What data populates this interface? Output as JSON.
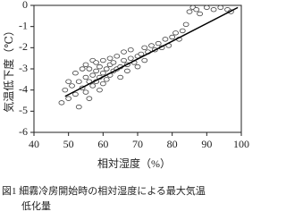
{
  "chart_data": {
    "type": "scatter",
    "xlabel": "相対湿度（%）",
    "ylabel": "気温低下度（℃）",
    "caption": [
      "図1 細霧冷房開始時の相対湿度による最大気温",
      "低化量"
    ],
    "xlim": [
      40,
      100
    ],
    "xticks": [
      40,
      50,
      60,
      70,
      80,
      90,
      100
    ],
    "ylim": [
      -6,
      0
    ],
    "yticks": [
      0,
      -1,
      -2,
      -3,
      -4,
      -5,
      -6
    ],
    "series": [
      {
        "type": "scatter",
        "color": "#444",
        "x": [
          48,
          49,
          50,
          50,
          51,
          52,
          52,
          53,
          53,
          54,
          54,
          55,
          55,
          55,
          56,
          56,
          56,
          57,
          57,
          57,
          58,
          58,
          58,
          59,
          59,
          59,
          60,
          60,
          60,
          61,
          61,
          62,
          62,
          62,
          63,
          63,
          64,
          64,
          65,
          65,
          66,
          66,
          67,
          67,
          68,
          68,
          69,
          70,
          70,
          71,
          72,
          72,
          73,
          74,
          75,
          76,
          77,
          78,
          79,
          80,
          81,
          82,
          83,
          84,
          85,
          86,
          87,
          88,
          90,
          92,
          94,
          96,
          97
        ],
        "values": [
          -4.6,
          -4.0,
          -3.6,
          -4.4,
          -3.8,
          -3.2,
          -4.2,
          -3.6,
          -4.8,
          -3.0,
          -3.9,
          -3.4,
          -4.1,
          -2.8,
          -3.6,
          -3.0,
          -4.4,
          -3.3,
          -2.6,
          -3.8,
          -3.1,
          -3.6,
          -2.7,
          -3.4,
          -2.9,
          -4.0,
          -3.2,
          -2.6,
          -3.7,
          -3.0,
          -3.5,
          -2.8,
          -3.3,
          -2.5,
          -3.1,
          -2.7,
          -3.0,
          -2.4,
          -2.9,
          -3.4,
          -2.6,
          -2.2,
          -2.8,
          -3.1,
          -2.5,
          -2.1,
          -2.7,
          -2.4,
          -2.9,
          -2.3,
          -2.0,
          -2.6,
          -2.2,
          -1.9,
          -2.1,
          -1.8,
          -2.0,
          -1.6,
          -1.9,
          -1.5,
          -1.3,
          -1.6,
          -1.2,
          -0.9,
          -0.3,
          -0.1,
          -0.2,
          -0.4,
          -0.1,
          -0.2,
          -0.1,
          -0.2,
          -0.3
        ]
      },
      {
        "type": "line",
        "color": "#000",
        "x": [
          49,
          99
        ],
        "values": [
          -4.3,
          -0.1
        ]
      }
    ]
  }
}
